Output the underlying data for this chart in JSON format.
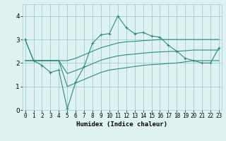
{
  "xlabel": "Humidex (Indice chaleur)",
  "x": [
    0,
    1,
    2,
    3,
    4,
    5,
    6,
    7,
    8,
    9,
    10,
    11,
    12,
    13,
    14,
    15,
    16,
    17,
    18,
    19,
    20,
    21,
    22,
    23
  ],
  "y_main": [
    3.0,
    2.1,
    1.9,
    1.6,
    1.7,
    0.05,
    1.2,
    1.85,
    2.85,
    3.2,
    3.25,
    4.0,
    3.5,
    3.25,
    3.3,
    3.15,
    3.1,
    2.75,
    2.5,
    2.2,
    2.1,
    2.0,
    2.0,
    2.65
  ],
  "y_upper": [
    3.0,
    2.1,
    2.1,
    2.1,
    2.1,
    2.1,
    2.2,
    2.35,
    2.5,
    2.65,
    2.75,
    2.85,
    2.9,
    2.92,
    2.95,
    2.97,
    3.0,
    3.0,
    3.0,
    3.0,
    3.0,
    3.0,
    3.0,
    3.0
  ],
  "y_lower": [
    2.1,
    2.1,
    2.1,
    2.1,
    2.1,
    1.0,
    1.15,
    1.3,
    1.45,
    1.6,
    1.7,
    1.75,
    1.8,
    1.85,
    1.9,
    1.93,
    1.95,
    1.98,
    2.0,
    2.05,
    2.1,
    2.1,
    2.1,
    2.1
  ],
  "y_mid": [
    2.1,
    2.1,
    2.1,
    2.1,
    2.1,
    1.55,
    1.68,
    1.82,
    1.97,
    2.12,
    2.22,
    2.3,
    2.35,
    2.38,
    2.42,
    2.45,
    2.47,
    2.49,
    2.5,
    2.52,
    2.55,
    2.55,
    2.55,
    2.55
  ],
  "color": "#2e8b7a",
  "bg_color": "#dff2f2",
  "grid_color": "#9ecece",
  "ylim": [
    0,
    4.5
  ],
  "xlim": [
    -0.3,
    23.3
  ],
  "yticks": [
    0,
    1,
    2,
    3,
    4
  ],
  "xticks": [
    0,
    1,
    2,
    3,
    4,
    5,
    6,
    7,
    8,
    9,
    10,
    11,
    12,
    13,
    14,
    15,
    16,
    17,
    18,
    19,
    20,
    21,
    22,
    23
  ],
  "figwidth": 3.2,
  "figheight": 2.0,
  "dpi": 100
}
